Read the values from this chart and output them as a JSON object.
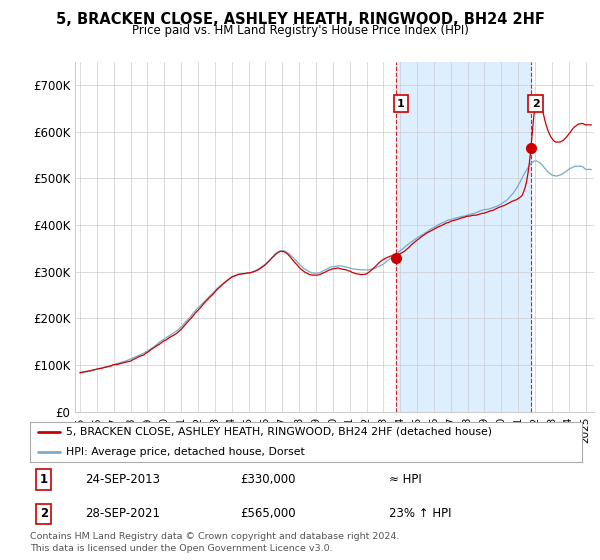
{
  "title": "5, BRACKEN CLOSE, ASHLEY HEATH, RINGWOOD, BH24 2HF",
  "subtitle": "Price paid vs. HM Land Registry's House Price Index (HPI)",
  "ylabel_ticks": [
    "£0",
    "£100K",
    "£200K",
    "£300K",
    "£400K",
    "£500K",
    "£600K",
    "£700K"
  ],
  "ytick_values": [
    0,
    100000,
    200000,
    300000,
    400000,
    500000,
    600000,
    700000
  ],
  "ylim": [
    0,
    750000
  ],
  "sale1_x": 2013.73,
  "sale1_y": 330000,
  "sale2_x": 2021.74,
  "sale2_y": 565000,
  "legend_entries": [
    "5, BRACKEN CLOSE, ASHLEY HEATH, RINGWOOD, BH24 2HF (detached house)",
    "HPI: Average price, detached house, Dorset"
  ],
  "ann1_label": "1",
  "ann1_date": "24-SEP-2013",
  "ann1_price": "£330,000",
  "ann1_hpi": "≈ HPI",
  "ann2_label": "2",
  "ann2_date": "28-SEP-2021",
  "ann2_price": "£565,000",
  "ann2_hpi": "23% ↑ HPI",
  "footer": "Contains HM Land Registry data © Crown copyright and database right 2024.\nThis data is licensed under the Open Government Licence v3.0.",
  "line_color_red": "#cc0000",
  "line_color_blue": "#7aaacc",
  "grid_color": "#cccccc",
  "shade_color": "#ddeeff",
  "xlim_start": 1994.7,
  "xlim_end": 2025.5
}
